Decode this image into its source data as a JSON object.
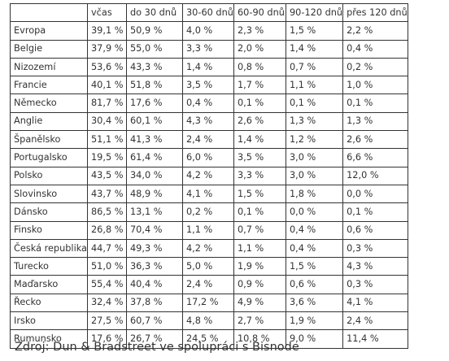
{
  "table": {
    "headers": [
      "",
      "včas",
      "do 30 dnů",
      "30-60 dnů",
      "60-90 dnů",
      "90-120 dnů",
      "přes 120 dnů"
    ],
    "rows": [
      [
        "Evropa",
        "39,1 %",
        "50,9 %",
        "4,0 %",
        "2,3 %",
        "1,5 %",
        "2,2 %"
      ],
      [
        "Belgie",
        "37,9 %",
        "55,0 %",
        "3,3 %",
        "2,0 %",
        "1,4 %",
        "0,4 %"
      ],
      [
        "Nizozemí",
        "53,6 %",
        "43,3 %",
        "1,4 %",
        "0,8 %",
        "0,7 %",
        "0,2 %"
      ],
      [
        "Francie",
        "40,1 %",
        "51,8 %",
        "3,5 %",
        "1,7 %",
        "1,1 %",
        "1,0 %"
      ],
      [
        "Německo",
        "81,7 %",
        "17,6 %",
        "0,4 %",
        "0,1 %",
        "0,1 %",
        "0,1 %"
      ],
      [
        "Anglie",
        "30,4 %",
        "60,1 %",
        "4,3 %",
        "2,6 %",
        "1,3 %",
        "1,3 %"
      ],
      [
        "Španělsko",
        "51,1 %",
        "41,3 %",
        "2,4 %",
        "1,4 %",
        "1,2 %",
        "2,6 %"
      ],
      [
        "Portugalsko",
        "19,5 %",
        "61,4 %",
        "6,0 %",
        "3,5 %",
        "3,0 %",
        "6,6 %"
      ],
      [
        "Polsko",
        "43,5 %",
        "34,0 %",
        "4,2 %",
        "3,3 %",
        "3,0 %",
        "12,0 %"
      ],
      [
        "Slovinsko",
        "43,7 %",
        "48,9 %",
        "4,1 %",
        "1,5 %",
        "1,8 %",
        "0,0 %"
      ],
      [
        "Dánsko",
        "86,5 %",
        "13,1 %",
        "0,2 %",
        "0,1 %",
        "0,0 %",
        "0,1 %"
      ],
      [
        "Finsko",
        "26,8 %",
        "70,4 %",
        "1,1 %",
        "0,7 %",
        "0,4 %",
        "0,6 %"
      ],
      [
        "Česká republika",
        "44,7 %",
        "49,3 %",
        "4,2 %",
        "1,1 %",
        "0,4 %",
        "0,3 %"
      ],
      [
        "Turecko",
        "51,0 %",
        "36,3 %",
        "5,0 %",
        "1,9 %",
        "1,5 %",
        "4,3 %"
      ],
      [
        "Maďarsko",
        "55,4 %",
        "40,4 %",
        "2,4 %",
        "0,9 %",
        "0,6 %",
        "0,3 %"
      ],
      [
        "Řecko",
        "32,4 %",
        "37,8 %",
        "17,2 %",
        "4,9 %",
        "3,6 %",
        "4,1 %"
      ],
      [
        "Irsko",
        "27,5 %",
        "60,7 %",
        "4,8 %",
        "2,7 %",
        "1,9 %",
        "2,4 %"
      ],
      [
        "Rumunsko",
        "17,6 %",
        "26,7 %",
        "24,5 %",
        "10,8 %",
        "9,0 %",
        "11,4 %"
      ]
    ]
  },
  "source": "Zdroj: Dun & Bradstreet ve spolupráci s Bisnode"
}
